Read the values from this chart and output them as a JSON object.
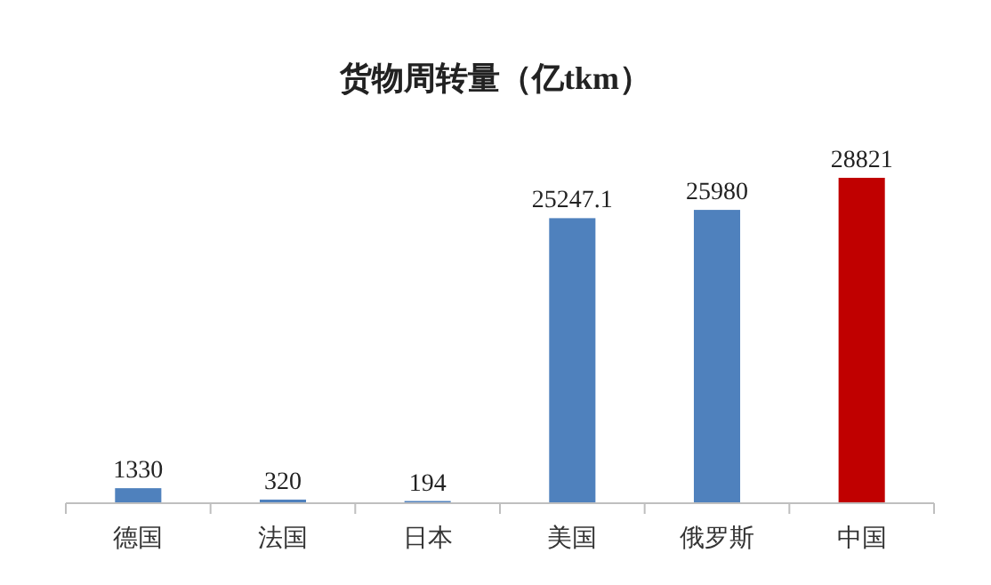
{
  "chart_data": {
    "type": "bar",
    "title": "货物周转量（亿tkm）",
    "categories": [
      "德国",
      "法国",
      "日本",
      "美国",
      "俄罗斯",
      "中国"
    ],
    "values": [
      1330,
      320,
      194,
      25247.1,
      25980,
      28821
    ],
    "colors": [
      "#4f81bd",
      "#4f81bd",
      "#4f81bd",
      "#4f81bd",
      "#4f81bd",
      "#c00000"
    ],
    "data_labels": true
  }
}
